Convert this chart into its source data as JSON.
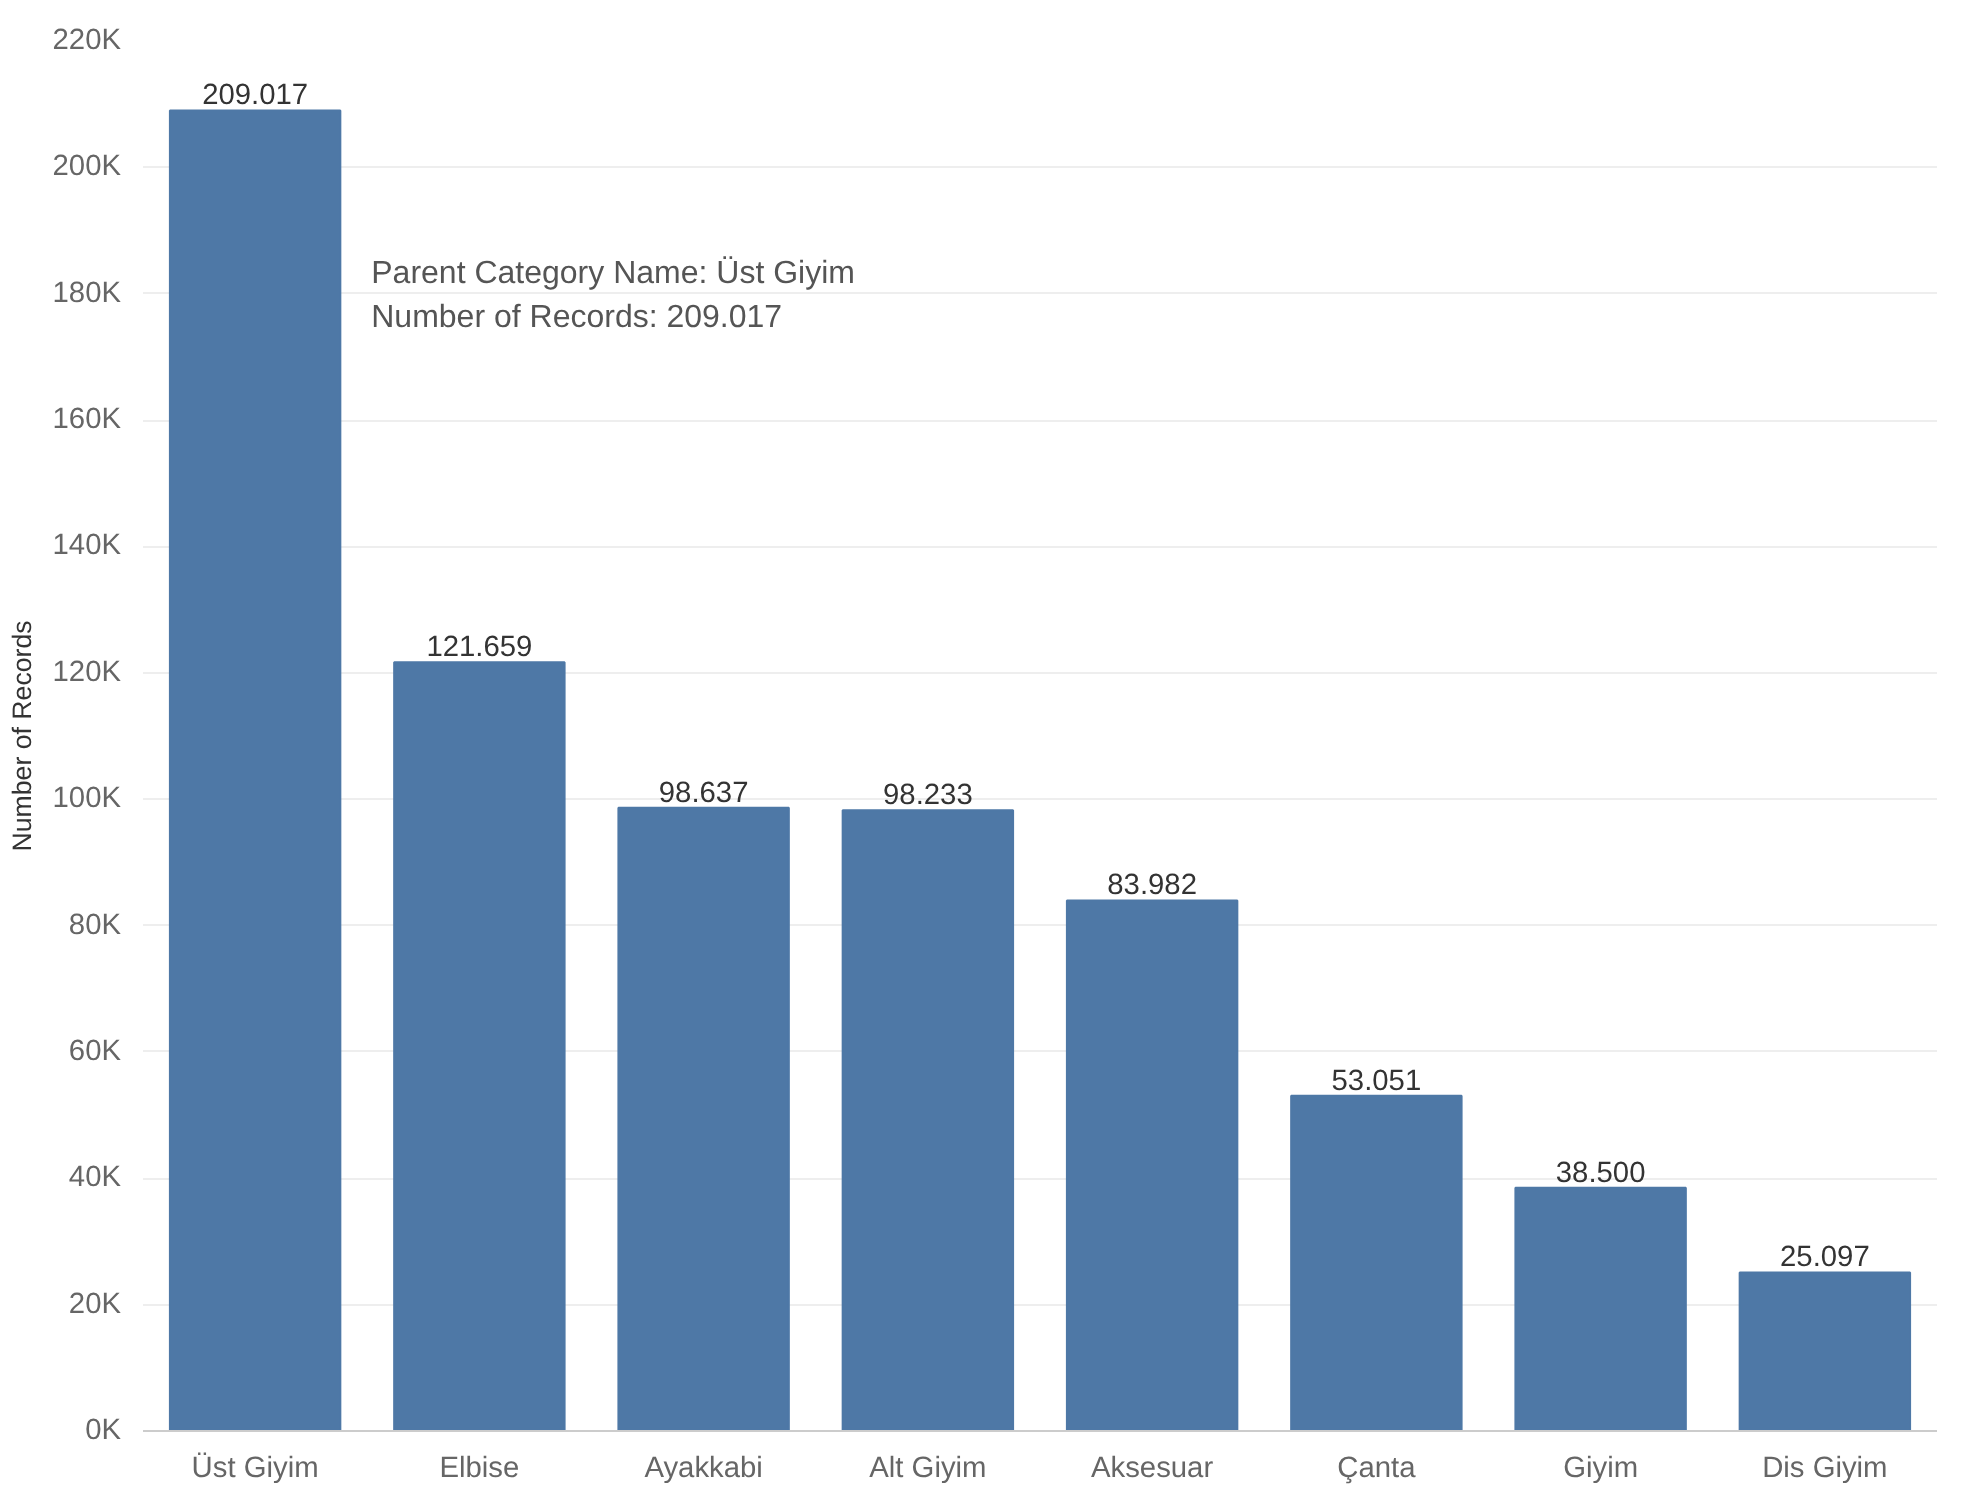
{
  "chart_data": {
    "type": "bar",
    "ylabel": "Number of Records",
    "categories": [
      "Üst Giyim",
      "Elbise",
      "Ayakkabi",
      "Alt Giyim",
      "Aksesuar",
      "Çanta",
      "Giyim",
      "Dis Giyim"
    ],
    "values": [
      209017,
      121659,
      98637,
      98233,
      83982,
      53051,
      38500,
      25097
    ],
    "value_labels": [
      "209.017",
      "121.659",
      "98.637",
      "98.233",
      "83.982",
      "53.051",
      "38.500",
      "25.097"
    ],
    "color": "#4e78a6",
    "ylim": [
      0,
      220000
    ],
    "yticks": [
      {
        "value": 0,
        "label": "0K"
      },
      {
        "value": 20000,
        "label": "20K"
      },
      {
        "value": 40000,
        "label": "40K"
      },
      {
        "value": 60000,
        "label": "60K"
      },
      {
        "value": 80000,
        "label": "80K"
      },
      {
        "value": 100000,
        "label": "100K"
      },
      {
        "value": 120000,
        "label": "120K"
      },
      {
        "value": 140000,
        "label": "140K"
      },
      {
        "value": 160000,
        "label": "160K"
      },
      {
        "value": 180000,
        "label": "180K"
      },
      {
        "value": 200000,
        "label": "200K"
      },
      {
        "value": 220000,
        "label": "220K"
      }
    ],
    "grid": "y",
    "annotations": [
      "Parent Category Name: Üst Giyim",
      "Number of Records: 209.017"
    ]
  }
}
